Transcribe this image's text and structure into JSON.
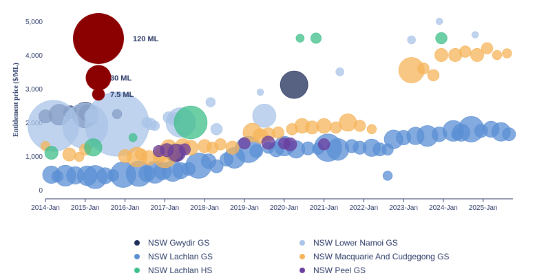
{
  "chart_data": {
    "type": "scatter",
    "ylabel": "Entitlement price ($/ML)",
    "xlabel": "",
    "ylim": [
      0,
      5000
    ],
    "xlim": [
      2014.0,
      2025.75
    ],
    "y_ticks": [
      "0",
      "1,000",
      "2,000",
      "3,000",
      "4,000",
      "5,000"
    ],
    "y_tick_values": [
      0,
      1000,
      2000,
      3000,
      4000,
      5000
    ],
    "x_ticks": [
      "2014-Jan",
      "2015-Jan",
      "2016-Jan",
      "2017-Jan",
      "2018-Jan",
      "2019-Jan",
      "2020-Jan",
      "2021-Jan",
      "2022-Jan",
      "2023-Jan",
      "2024-Jan",
      "2025-Jan"
    ],
    "x_tick_values": [
      2014,
      2015,
      2016,
      2017,
      2018,
      2019,
      2020,
      2021,
      2022,
      2023,
      2024,
      2025
    ],
    "grid": false,
    "legend_position": "bottom",
    "size_legend": [
      {
        "label": "120 ML",
        "ml": 120
      },
      {
        "label": "30 ML",
        "ml": 30
      },
      {
        "label": "7.5 ML",
        "ml": 7.5
      }
    ],
    "size_legend_color": "#8b0000",
    "series": [
      {
        "name": "NSW Gwydir GS",
        "color": "#1f2d5a",
        "points": [
          [
            2014.0,
            2180,
            8
          ],
          [
            2014.35,
            2230,
            20
          ],
          [
            2014.62,
            2300,
            8
          ],
          [
            2015.0,
            2220,
            30
          ],
          [
            2015.05,
            2280,
            12
          ],
          [
            2015.8,
            2250,
            4
          ],
          [
            2017.25,
            1100,
            15
          ],
          [
            2020.25,
            3120,
            35
          ]
        ]
      },
      {
        "name": "NSW Lower Namoi GS",
        "color": "#a9c4e8",
        "points": [
          [
            2014.2,
            1900,
            120
          ],
          [
            2015.0,
            1900,
            95
          ],
          [
            2015.8,
            1950,
            190
          ],
          [
            2015.15,
            2200,
            8
          ],
          [
            2016.55,
            2000,
            5
          ],
          [
            2016.65,
            1950,
            6
          ],
          [
            2016.75,
            1900,
            4
          ],
          [
            2017.1,
            2150,
            6
          ],
          [
            2017.25,
            2100,
            8
          ],
          [
            2017.4,
            2000,
            40
          ],
          [
            2018.15,
            2600,
            4
          ],
          [
            2018.3,
            1800,
            6
          ],
          [
            2019.5,
            2200,
            25
          ],
          [
            2019.4,
            2900,
            2
          ],
          [
            2021.4,
            3500,
            3
          ],
          [
            2023.2,
            4450,
            3
          ],
          [
            2023.9,
            5000,
            2
          ],
          [
            2024.8,
            4600,
            2
          ]
        ]
      },
      {
        "name": "NSW Lachlan GS",
        "color": "#5b8fd4",
        "points": [
          [
            2014.15,
            450,
            14
          ],
          [
            2014.3,
            400,
            6
          ],
          [
            2014.5,
            420,
            20
          ],
          [
            2014.75,
            430,
            14
          ],
          [
            2015.05,
            420,
            18
          ],
          [
            2015.25,
            380,
            25
          ],
          [
            2015.5,
            420,
            12
          ],
          [
            2015.7,
            430,
            6
          ],
          [
            2015.95,
            450,
            30
          ],
          [
            2016.35,
            480,
            30
          ],
          [
            2016.55,
            480,
            12
          ],
          [
            2016.75,
            520,
            22
          ],
          [
            2016.95,
            560,
            14
          ],
          [
            2017.2,
            560,
            20
          ],
          [
            2017.4,
            570,
            12
          ],
          [
            2017.6,
            620,
            8
          ],
          [
            2017.85,
            720,
            30
          ],
          [
            2018.1,
            850,
            10
          ],
          [
            2018.3,
            700,
            8
          ],
          [
            2018.55,
            900,
            8
          ],
          [
            2018.75,
            950,
            20
          ],
          [
            2019.1,
            1200,
            32
          ],
          [
            2019.3,
            1150,
            8
          ],
          [
            2019.6,
            1250,
            6
          ],
          [
            2019.8,
            1200,
            10
          ],
          [
            2020.0,
            1300,
            18
          ],
          [
            2020.3,
            1200,
            14
          ],
          [
            2020.6,
            1230,
            8
          ],
          [
            2020.85,
            1220,
            6
          ],
          [
            2021.1,
            1250,
            35
          ],
          [
            2021.35,
            1200,
            22
          ],
          [
            2021.7,
            1300,
            8
          ],
          [
            2021.9,
            1250,
            8
          ],
          [
            2022.2,
            1250,
            14
          ],
          [
            2022.4,
            1200,
            8
          ],
          [
            2022.6,
            1200,
            6
          ],
          [
            2022.75,
            1500,
            16
          ],
          [
            2023.0,
            1550,
            10
          ],
          [
            2023.3,
            1600,
            14
          ],
          [
            2023.6,
            1600,
            20
          ],
          [
            2023.9,
            1650,
            10
          ],
          [
            2024.25,
            1750,
            20
          ],
          [
            2024.45,
            1700,
            14
          ],
          [
            2024.7,
            1800,
            30
          ],
          [
            2024.95,
            1750,
            8
          ],
          [
            2025.2,
            1800,
            12
          ],
          [
            2025.45,
            1720,
            16
          ],
          [
            2025.65,
            1650,
            8
          ],
          [
            2022.6,
            420,
            4
          ],
          [
            2024.35,
            1650,
            6
          ]
        ]
      },
      {
        "name": "NSW Macquarie And Cudgegong GS",
        "color": "#f5b45a",
        "points": [
          [
            2014.0,
            1300,
            4
          ],
          [
            2014.6,
            1050,
            8
          ],
          [
            2014.85,
            980,
            4
          ],
          [
            2015.0,
            1200,
            6
          ],
          [
            2016.0,
            1000,
            8
          ],
          [
            2016.4,
            1050,
            6
          ],
          [
            2016.6,
            950,
            10
          ],
          [
            2016.9,
            1000,
            6
          ],
          [
            2017.1,
            1250,
            12
          ],
          [
            2017.25,
            1100,
            8
          ],
          [
            2017.45,
            1300,
            10
          ],
          [
            2017.65,
            1250,
            10
          ],
          [
            2018.0,
            1300,
            8
          ],
          [
            2018.2,
            1250,
            6
          ],
          [
            2018.4,
            1350,
            6
          ],
          [
            2018.7,
            1250,
            8
          ],
          [
            2019.2,
            1700,
            16
          ],
          [
            2019.4,
            1600,
            10
          ],
          [
            2019.6,
            1650,
            8
          ],
          [
            2019.85,
            1700,
            6
          ],
          [
            2020.2,
            1800,
            6
          ],
          [
            2020.45,
            1900,
            10
          ],
          [
            2020.7,
            1850,
            8
          ],
          [
            2021.0,
            1900,
            10
          ],
          [
            2021.3,
            1850,
            6
          ],
          [
            2021.6,
            2000,
            14
          ],
          [
            2021.9,
            1900,
            6
          ],
          [
            2022.2,
            1800,
            4
          ],
          [
            2023.2,
            3550,
            30
          ],
          [
            2023.5,
            3600,
            6
          ],
          [
            2023.75,
            3400,
            6
          ],
          [
            2023.95,
            4000,
            8
          ],
          [
            2024.3,
            4000,
            8
          ],
          [
            2024.55,
            4100,
            6
          ],
          [
            2024.85,
            4000,
            8
          ],
          [
            2025.1,
            4200,
            6
          ],
          [
            2025.35,
            4000,
            4
          ],
          [
            2025.6,
            4050,
            4
          ],
          [
            2016.3,
            970,
            18
          ],
          [
            2017.0,
            1000,
            25
          ]
        ]
      },
      {
        "name": "NSW Lachlan HS",
        "color": "#3dbf8a",
        "points": [
          [
            2014.15,
            1100,
            8
          ],
          [
            2015.2,
            1260,
            14
          ],
          [
            2017.65,
            2000,
            50
          ],
          [
            2020.4,
            4500,
            3
          ],
          [
            2020.8,
            4500,
            5
          ],
          [
            2023.95,
            4500,
            6
          ],
          [
            2016.2,
            1550,
            3
          ]
        ]
      },
      {
        "name": "NSW Peel GS",
        "color": "#6a3e9e",
        "points": [
          [
            2016.85,
            1150,
            6
          ],
          [
            2017.05,
            1180,
            8
          ],
          [
            2017.3,
            1100,
            14
          ],
          [
            2017.5,
            1200,
            6
          ],
          [
            2019.0,
            1380,
            6
          ],
          [
            2019.6,
            1400,
            8
          ],
          [
            2020.0,
            1380,
            6
          ],
          [
            2020.15,
            1350,
            8
          ],
          [
            2021.0,
            1350,
            6
          ]
        ]
      }
    ]
  }
}
